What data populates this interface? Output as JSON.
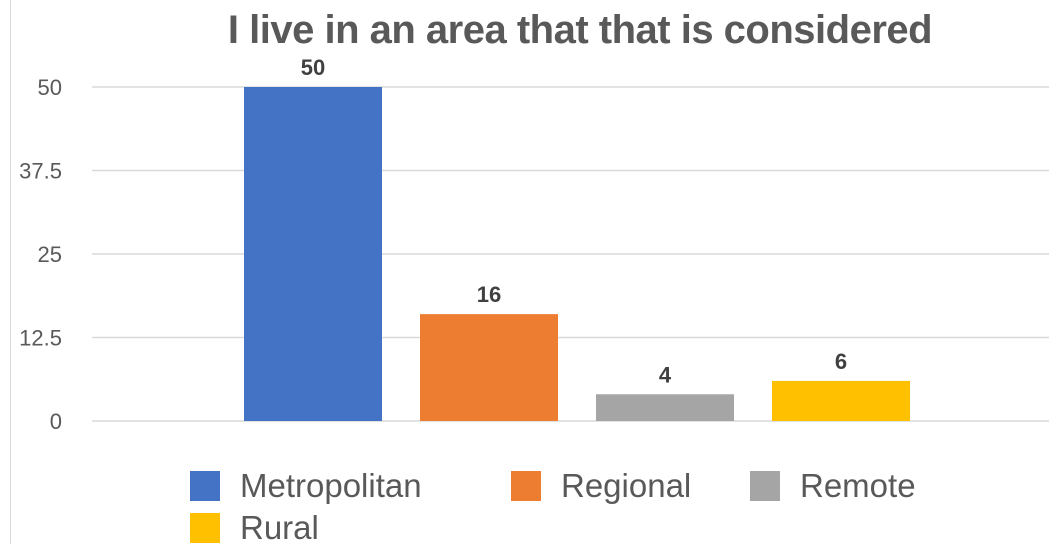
{
  "chart_data": {
    "type": "bar",
    "title": "I live in an area that that is considered",
    "categories": [
      "Metropolitan",
      "Regional",
      "Remote",
      "Rural"
    ],
    "values": [
      50,
      16,
      4,
      6
    ],
    "colors": [
      "#4472c4",
      "#ed7d31",
      "#a5a5a5",
      "#ffc000"
    ],
    "yticks": [
      "0",
      "12.5",
      "25",
      "37.5",
      "50"
    ],
    "ylim": [
      0,
      50
    ],
    "grid": true,
    "legend": "bottom"
  }
}
